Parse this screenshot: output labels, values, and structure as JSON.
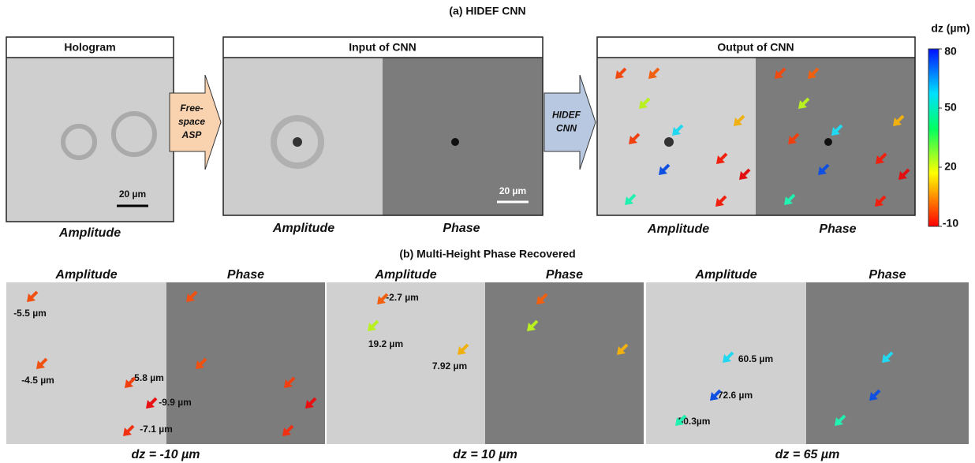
{
  "section_a": {
    "title": "(a) HIDEF CNN",
    "hologram": {
      "header": "Hologram",
      "scale": "20 µm",
      "label": "Amplitude"
    },
    "step1": [
      "Free-",
      "space",
      "ASP"
    ],
    "input": {
      "header": "Input of CNN",
      "scale": "20 µm",
      "labels": [
        "Amplitude",
        "Phase"
      ]
    },
    "step2": [
      "HIDEF",
      "CNN"
    ],
    "output": {
      "header": "Output of CNN",
      "labels": [
        "Amplitude",
        "Phase"
      ]
    },
    "colorbar": {
      "title": "dz (µm)",
      "lim": [
        -10,
        80
      ],
      "ticks": [
        80,
        50,
        20,
        -10
      ]
    }
  },
  "section_b": {
    "title": "(b) Multi-Height Phase Recovered",
    "panels": [
      {
        "headers": [
          "Amplitude",
          "Phase"
        ],
        "caption": "dz = -10 µm",
        "annotations": [
          "-5.5 µm",
          "-4.5 µm",
          "-5.8 µm",
          "-9.9 µm",
          "-7.1 µm"
        ]
      },
      {
        "headers": [
          "Amplitude",
          "Phase"
        ],
        "caption": "dz = 10 µm",
        "annotations": [
          "-2.7 µm",
          "19.2 µm",
          "7.92 µm"
        ]
      },
      {
        "headers": [
          "Amplitude",
          "Phase"
        ],
        "caption": "dz = 65 µm",
        "annotations": [
          "60.5 µm",
          "72.6 µm",
          "50.3µm"
        ]
      }
    ]
  }
}
